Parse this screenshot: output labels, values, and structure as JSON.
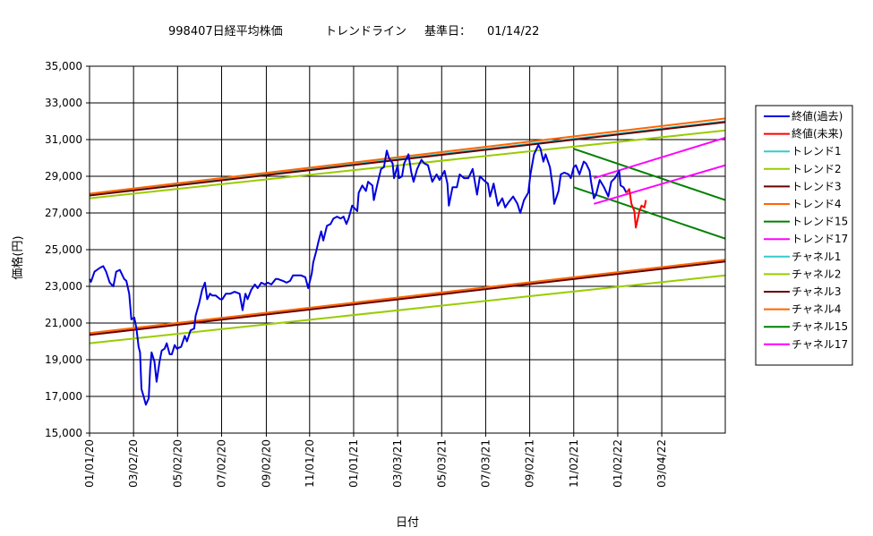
{
  "chart_data": {
    "type": "line",
    "title_main": "998407日経平均株価",
    "title_trend": "トレンドライン",
    "title_date_label": "基準日：",
    "title_date": "01/14/22",
    "xlabel": "日付",
    "ylabel": "価格(円)",
    "ylim": [
      15000,
      35000
    ],
    "yticks": [
      "15,000",
      "17,000",
      "19,000",
      "21,000",
      "23,000",
      "25,000",
      "27,000",
      "29,000",
      "31,000",
      "33,000",
      "35,000"
    ],
    "xlim": [
      "2020-01-01",
      "2022-05-31"
    ],
    "xticks": [
      "01/01/20",
      "03/02/20",
      "05/02/20",
      "07/02/20",
      "09/02/20",
      "11/01/20",
      "01/01/21",
      "03/03/21",
      "05/03/21",
      "07/03/21",
      "09/02/21",
      "11/02/21",
      "01/02/22",
      "03/04/22"
    ],
    "grid": true,
    "legend_position": "right",
    "series": [
      {
        "name": "終値(過去)",
        "color": "#0000dd",
        "points": [
          [
            "2020-01-01",
            23400
          ],
          [
            "2020-01-03",
            23250
          ],
          [
            "2020-01-08",
            23800
          ],
          [
            "2020-01-15",
            24000
          ],
          [
            "2020-01-20",
            24100
          ],
          [
            "2020-01-24",
            23800
          ],
          [
            "2020-01-29",
            23200
          ],
          [
            "2020-02-03",
            23000
          ],
          [
            "2020-02-07",
            23800
          ],
          [
            "2020-02-12",
            23900
          ],
          [
            "2020-02-18",
            23400
          ],
          [
            "2020-02-21",
            23300
          ],
          [
            "2020-02-25",
            22600
          ],
          [
            "2020-02-28",
            21200
          ],
          [
            "2020-03-03",
            21300
          ],
          [
            "2020-03-06",
            20700
          ],
          [
            "2020-03-09",
            19700
          ],
          [
            "2020-03-11",
            19400
          ],
          [
            "2020-03-13",
            17400
          ],
          [
            "2020-03-16",
            17000
          ],
          [
            "2020-03-19",
            16550
          ],
          [
            "2020-03-23",
            16900
          ],
          [
            "2020-03-25",
            18500
          ],
          [
            "2020-03-27",
            19400
          ],
          [
            "2020-03-31",
            18900
          ],
          [
            "2020-04-03",
            17800
          ],
          [
            "2020-04-07",
            18900
          ],
          [
            "2020-04-10",
            19500
          ],
          [
            "2020-04-14",
            19600
          ],
          [
            "2020-04-17",
            19900
          ],
          [
            "2020-04-21",
            19300
          ],
          [
            "2020-04-24",
            19300
          ],
          [
            "2020-04-28",
            19800
          ],
          [
            "2020-05-01",
            19600
          ],
          [
            "2020-05-07",
            19700
          ],
          [
            "2020-05-12",
            20300
          ],
          [
            "2020-05-15",
            20000
          ],
          [
            "2020-05-20",
            20600
          ],
          [
            "2020-05-25",
            20700
          ],
          [
            "2020-05-27",
            21400
          ],
          [
            "2020-06-01",
            22100
          ],
          [
            "2020-06-05",
            22800
          ],
          [
            "2020-06-09",
            23200
          ],
          [
            "2020-06-12",
            22300
          ],
          [
            "2020-06-16",
            22600
          ],
          [
            "2020-06-19",
            22500
          ],
          [
            "2020-06-24",
            22500
          ],
          [
            "2020-06-30",
            22300
          ],
          [
            "2020-07-03",
            22300
          ],
          [
            "2020-07-08",
            22600
          ],
          [
            "2020-07-14",
            22600
          ],
          [
            "2020-07-20",
            22700
          ],
          [
            "2020-07-27",
            22600
          ],
          [
            "2020-07-31",
            21700
          ],
          [
            "2020-08-04",
            22600
          ],
          [
            "2020-08-07",
            22300
          ],
          [
            "2020-08-12",
            22800
          ],
          [
            "2020-08-17",
            23100
          ],
          [
            "2020-08-21",
            22900
          ],
          [
            "2020-08-26",
            23200
          ],
          [
            "2020-08-31",
            23100
          ],
          [
            "2020-09-04",
            23200
          ],
          [
            "2020-09-09",
            23100
          ],
          [
            "2020-09-15",
            23400
          ],
          [
            "2020-09-18",
            23400
          ],
          [
            "2020-09-25",
            23300
          ],
          [
            "2020-09-30",
            23200
          ],
          [
            "2020-10-05",
            23300
          ],
          [
            "2020-10-09",
            23600
          ],
          [
            "2020-10-14",
            23600
          ],
          [
            "2020-10-20",
            23600
          ],
          [
            "2020-10-26",
            23500
          ],
          [
            "2020-10-30",
            22900
          ],
          [
            "2020-11-04",
            23700
          ],
          [
            "2020-11-06",
            24300
          ],
          [
            "2020-11-10",
            24900
          ],
          [
            "2020-11-13",
            25400
          ],
          [
            "2020-11-17",
            26000
          ],
          [
            "2020-11-20",
            25500
          ],
          [
            "2020-11-25",
            26300
          ],
          [
            "2020-11-30",
            26400
          ],
          [
            "2020-12-04",
            26700
          ],
          [
            "2020-12-09",
            26800
          ],
          [
            "2020-12-14",
            26700
          ],
          [
            "2020-12-18",
            26800
          ],
          [
            "2020-12-22",
            26400
          ],
          [
            "2020-12-25",
            26700
          ],
          [
            "2020-12-30",
            27400
          ],
          [
            "2021-01-06",
            27100
          ],
          [
            "2021-01-08",
            28100
          ],
          [
            "2021-01-13",
            28500
          ],
          [
            "2021-01-18",
            28200
          ],
          [
            "2021-01-21",
            28700
          ],
          [
            "2021-01-27",
            28500
          ],
          [
            "2021-01-29",
            27700
          ],
          [
            "2021-02-03",
            28600
          ],
          [
            "2021-02-08",
            29400
          ],
          [
            "2021-02-12",
            29500
          ],
          [
            "2021-02-16",
            30400
          ],
          [
            "2021-02-19",
            30000
          ],
          [
            "2021-02-24",
            29700
          ],
          [
            "2021-02-26",
            28900
          ],
          [
            "2021-03-03",
            29600
          ],
          [
            "2021-03-05",
            28900
          ],
          [
            "2021-03-09",
            29000
          ],
          [
            "2021-03-12",
            29700
          ],
          [
            "2021-03-18",
            30200
          ],
          [
            "2021-03-22",
            29200
          ],
          [
            "2021-03-25",
            28700
          ],
          [
            "2021-03-30",
            29400
          ],
          [
            "2021-04-05",
            29900
          ],
          [
            "2021-04-09",
            29700
          ],
          [
            "2021-04-14",
            29600
          ],
          [
            "2021-04-20",
            28700
          ],
          [
            "2021-04-26",
            29100
          ],
          [
            "2021-04-30",
            28800
          ],
          [
            "2021-05-07",
            29300
          ],
          [
            "2021-05-11",
            28600
          ],
          [
            "2021-05-13",
            27400
          ],
          [
            "2021-05-18",
            28400
          ],
          [
            "2021-05-24",
            28400
          ],
          [
            "2021-05-28",
            29100
          ],
          [
            "2021-06-03",
            28900
          ],
          [
            "2021-06-09",
            28900
          ],
          [
            "2021-06-15",
            29400
          ],
          [
            "2021-06-21",
            28000
          ],
          [
            "2021-06-25",
            29000
          ],
          [
            "2021-06-30",
            28800
          ],
          [
            "2021-07-06",
            28600
          ],
          [
            "2021-07-09",
            27900
          ],
          [
            "2021-07-14",
            28600
          ],
          [
            "2021-07-20",
            27400
          ],
          [
            "2021-07-26",
            27800
          ],
          [
            "2021-07-30",
            27300
          ],
          [
            "2021-08-04",
            27600
          ],
          [
            "2021-08-10",
            27900
          ],
          [
            "2021-08-16",
            27500
          ],
          [
            "2021-08-20",
            27000
          ],
          [
            "2021-08-25",
            27700
          ],
          [
            "2021-08-31",
            28100
          ],
          [
            "2021-09-03",
            29100
          ],
          [
            "2021-09-08",
            30200
          ],
          [
            "2021-09-14",
            30700
          ],
          [
            "2021-09-17",
            30500
          ],
          [
            "2021-09-21",
            29800
          ],
          [
            "2021-09-24",
            30200
          ],
          [
            "2021-09-30",
            29500
          ],
          [
            "2021-10-04",
            28400
          ],
          [
            "2021-10-06",
            27500
          ],
          [
            "2021-10-12",
            28200
          ],
          [
            "2021-10-15",
            29100
          ],
          [
            "2021-10-20",
            29200
          ],
          [
            "2021-10-26",
            29100
          ],
          [
            "2021-10-29",
            28900
          ],
          [
            "2021-11-02",
            29500
          ],
          [
            "2021-11-05",
            29600
          ],
          [
            "2021-11-10",
            29100
          ],
          [
            "2021-11-16",
            29800
          ],
          [
            "2021-11-19",
            29700
          ],
          [
            "2021-11-24",
            29300
          ],
          [
            "2021-11-26",
            28700
          ],
          [
            "2021-11-30",
            27800
          ],
          [
            "2021-12-03",
            28000
          ],
          [
            "2021-12-08",
            28800
          ],
          [
            "2021-12-14",
            28400
          ],
          [
            "2021-12-20",
            27900
          ],
          [
            "2021-12-24",
            28700
          ],
          [
            "2021-12-29",
            28900
          ],
          [
            "2022-01-04",
            29300
          ],
          [
            "2022-01-06",
            28500
          ],
          [
            "2022-01-10",
            28400
          ],
          [
            "2022-01-14",
            28100
          ]
        ]
      },
      {
        "name": "終値(未来)",
        "color": "#ff0000",
        "points": [
          [
            "2022-01-14",
            28100
          ],
          [
            "2022-01-18",
            28300
          ],
          [
            "2022-01-21",
            27500
          ],
          [
            "2022-01-25",
            27100
          ],
          [
            "2022-01-27",
            26200
          ],
          [
            "2022-02-01",
            27100
          ],
          [
            "2022-02-04",
            27400
          ],
          [
            "2022-02-08",
            27300
          ],
          [
            "2022-02-10",
            27700
          ]
        ]
      },
      {
        "name": "トレンド1",
        "color": "#33cccc",
        "points": [
          [
            "2020-01-01",
            28000
          ],
          [
            "2022-05-31",
            32000
          ]
        ]
      },
      {
        "name": "トレンド2",
        "color": "#99cc00",
        "points": [
          [
            "2020-01-01",
            27800
          ],
          [
            "2022-05-31",
            31500
          ]
        ]
      },
      {
        "name": "トレンド3",
        "color": "#660000",
        "points": [
          [
            "2020-01-01",
            27950
          ],
          [
            "2022-05-31",
            31950
          ]
        ]
      },
      {
        "name": "トレンド4",
        "color": "#ff6600",
        "points": [
          [
            "2020-01-01",
            28050
          ],
          [
            "2022-05-31",
            32150
          ]
        ]
      },
      {
        "name": "トレンド15",
        "color": "#008000",
        "points": [
          [
            "2021-11-02",
            30500
          ],
          [
            "2022-05-31",
            27700
          ]
        ]
      },
      {
        "name": "トレンド17",
        "color": "#ff00ff",
        "points": [
          [
            "2021-11-30",
            28900
          ],
          [
            "2022-05-31",
            31100
          ]
        ]
      },
      {
        "name": "チャネル1",
        "color": "#33cccc",
        "points": [
          [
            "2020-01-01",
            20400
          ],
          [
            "2022-05-31",
            24400
          ]
        ]
      },
      {
        "name": "チャネル2",
        "color": "#99cc00",
        "points": [
          [
            "2020-01-01",
            19900
          ],
          [
            "2022-05-31",
            23600
          ]
        ]
      },
      {
        "name": "チャネル3",
        "color": "#660000",
        "points": [
          [
            "2020-01-01",
            20350
          ],
          [
            "2022-05-31",
            24350
          ]
        ]
      },
      {
        "name": "チャネル4",
        "color": "#ff6600",
        "points": [
          [
            "2020-01-01",
            20450
          ],
          [
            "2022-05-31",
            24450
          ]
        ]
      },
      {
        "name": "チャネル15",
        "color": "#008000",
        "points": [
          [
            "2021-11-02",
            28400
          ],
          [
            "2022-05-31",
            25600
          ]
        ]
      },
      {
        "name": "チャネル17",
        "color": "#ff00ff",
        "points": [
          [
            "2021-11-30",
            27500
          ],
          [
            "2022-05-31",
            29600
          ]
        ]
      }
    ]
  }
}
